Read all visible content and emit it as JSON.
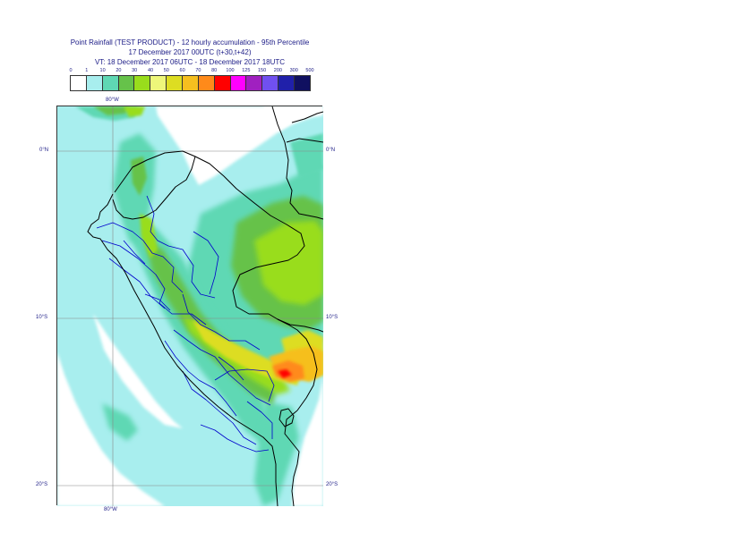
{
  "title": {
    "line1": "Point Rainfall (TEST PRODUCT) - 12 hourly accumulation - 95th Percentile",
    "line2": "17 December 2017 00UTC (t+30,t+42)",
    "line3": "VT: 18 December 2017 06UTC - 18 December 2017 18UTC"
  },
  "legend": {
    "ticks": [
      "0",
      "1",
      "10",
      "20",
      "30",
      "40",
      "50",
      "60",
      "70",
      "80",
      "100",
      "125",
      "150",
      "200",
      "300",
      "500"
    ],
    "colors": [
      "#ffffff",
      "#a8eeee",
      "#5fd8b4",
      "#66c24a",
      "#99dd1c",
      "#eef77a",
      "#dddd22",
      "#f6bf1f",
      "#ff8a1a",
      "#ff0000",
      "#ff00ff",
      "#a020c0",
      "#7050f0",
      "#2020aa",
      "#101060"
    ]
  },
  "map": {
    "lon_label_top": "80°W",
    "lon_label_bottom": "80°W",
    "lat_labels_left": [
      "0°N",
      "10°S",
      "20°S"
    ],
    "lat_labels_right": [
      "0°N",
      "10°S",
      "20°S"
    ],
    "colors": {
      "sea_shade": "#a8eeee",
      "light_green": "#5fd8b4",
      "green": "#66c24a",
      "yellow_green": "#99dd1c",
      "yellow": "#dddd22",
      "orange": "#f6bf1f",
      "deep_orange": "#ff8a1a",
      "red": "#ff0000",
      "border": "#000000",
      "admin": "#0000cc",
      "grid": "#888888"
    }
  }
}
